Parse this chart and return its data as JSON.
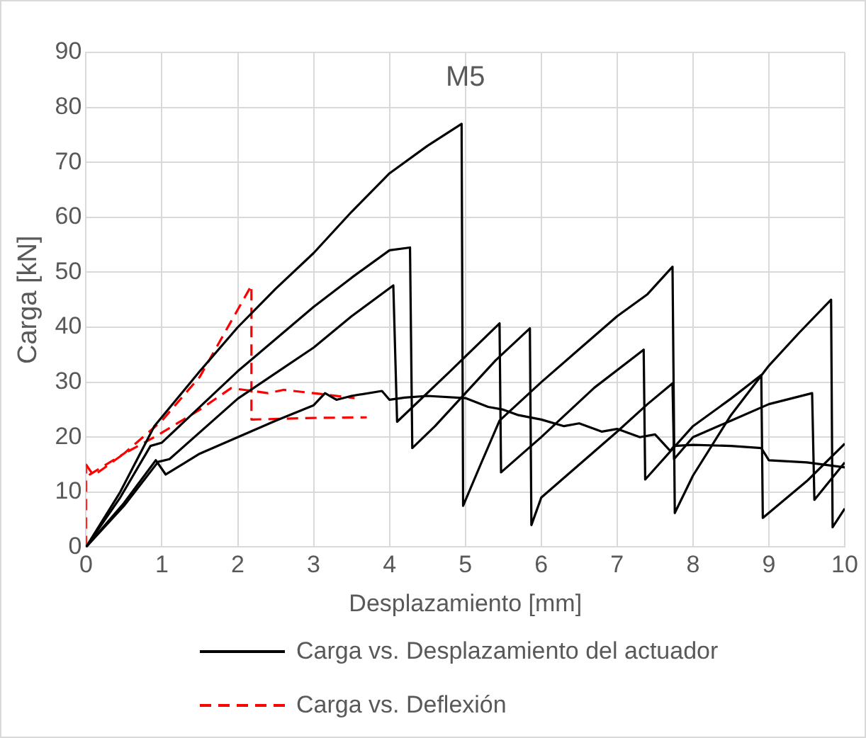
{
  "chart_data": {
    "type": "line",
    "title": "M5",
    "xlabel": "Desplazamiento [mm]",
    "ylabel": "Carga [kN]",
    "xlim": [
      0,
      10
    ],
    "ylim": [
      0,
      90
    ],
    "xticks": [
      0,
      1,
      2,
      3,
      4,
      5,
      6,
      7,
      8,
      9,
      10
    ],
    "yticks": [
      0,
      10,
      20,
      30,
      40,
      50,
      60,
      70,
      80,
      90
    ],
    "grid": true,
    "legend": "bottom",
    "marker": "none",
    "series": [
      {
        "name": "Carga vs. Desplazamiento del actuador",
        "color": "#000000",
        "line_style": "solid",
        "x": [
          0,
          0.45,
          0.9,
          1.5,
          2,
          2.5,
          3,
          3.5,
          4,
          4.5,
          4.95,
          4.97,
          5.2,
          5.45,
          6,
          6.5,
          7,
          7.4,
          7.73,
          7.76,
          8,
          8.5,
          9,
          9.4,
          9.82,
          9.84,
          10
        ],
        "values": [
          0,
          10,
          22,
          32,
          40,
          47,
          53.5,
          61,
          68,
          73,
          77,
          7.5,
          15,
          23,
          30,
          36,
          42,
          46,
          51,
          6.2,
          13,
          24,
          33,
          39,
          45,
          3.6,
          7
        ]
      },
      {
        "color": "#000000",
        "line_style": "solid",
        "x": [
          0,
          0.45,
          0.85,
          1,
          2,
          3,
          3.5,
          4,
          4.27,
          4.3,
          4.6,
          5,
          5.4,
          5.85,
          5.87,
          6,
          6.5,
          7,
          7.4,
          7.73,
          7.75,
          8,
          8.5,
          9,
          9.57,
          9.6,
          10
        ],
        "values": [
          0,
          9,
          18.4,
          19,
          32,
          43.7,
          49,
          54,
          54.5,
          18,
          22,
          28,
          34,
          39.8,
          4,
          9,
          15,
          21,
          26,
          29.8,
          16,
          20,
          23,
          26,
          28,
          8.6,
          15.4
        ]
      },
      {
        "color": "#000000",
        "line_style": "solid",
        "x": [
          0,
          0.5,
          0.95,
          1.1,
          2,
          3,
          3.5,
          4.05,
          4.1,
          4.8,
          5.45,
          5.47,
          6,
          6.7,
          7.35,
          7.37,
          8,
          8.5,
          8.9,
          8.92,
          9.5,
          10
        ],
        "values": [
          0,
          7.5,
          15.5,
          16,
          27,
          36.3,
          42,
          47.6,
          22.8,
          32,
          40.7,
          13.6,
          20,
          29,
          35.9,
          12.3,
          22,
          27,
          31.3,
          5.3,
          12,
          18.8
        ]
      },
      {
        "color": "#000000",
        "line_style": "solid",
        "x": [
          0,
          0.5,
          0.92,
          1.05,
          1.5,
          2,
          2.5,
          3,
          3.15,
          3.3,
          3.5,
          3.9,
          4,
          4.2,
          4.5,
          5,
          5.3,
          5.5,
          5.7,
          6,
          6.3,
          6.5,
          6.8,
          7,
          7.3,
          7.5,
          7.7,
          7.75,
          8,
          8.5,
          8.9,
          9,
          9.5,
          10
        ],
        "values": [
          0,
          8,
          15.8,
          13.2,
          17,
          20,
          23,
          25.8,
          28,
          26.8,
          27.5,
          28.4,
          26.8,
          27.2,
          27.5,
          27.1,
          25.5,
          25,
          24,
          23.2,
          22,
          22.5,
          21,
          21.5,
          20,
          20.5,
          17.5,
          18.4,
          18.6,
          18.4,
          18,
          15.8,
          15.4,
          14.5
        ]
      },
      {
        "name": "Carga vs. Deflexión",
        "color": "#ff0000",
        "line_style": "dashed",
        "x": [
          0,
          0,
          0.05,
          0.5,
          1,
          1.5,
          2.18,
          2.18,
          3,
          3.7
        ],
        "values": [
          0,
          15,
          13.2,
          17,
          23,
          31,
          47.6,
          23.2,
          23.5,
          23.6
        ]
      },
      {
        "color": "#ff0000",
        "line_style": "dashed",
        "x": [
          0,
          0.1,
          0.5,
          0.9,
          1.5,
          1.91,
          2.2,
          2.4,
          2.6,
          3,
          3.54
        ],
        "values": [
          15,
          13,
          17,
          20,
          25,
          28.9,
          28.4,
          28,
          28.6,
          28,
          27.1
        ]
      }
    ]
  }
}
